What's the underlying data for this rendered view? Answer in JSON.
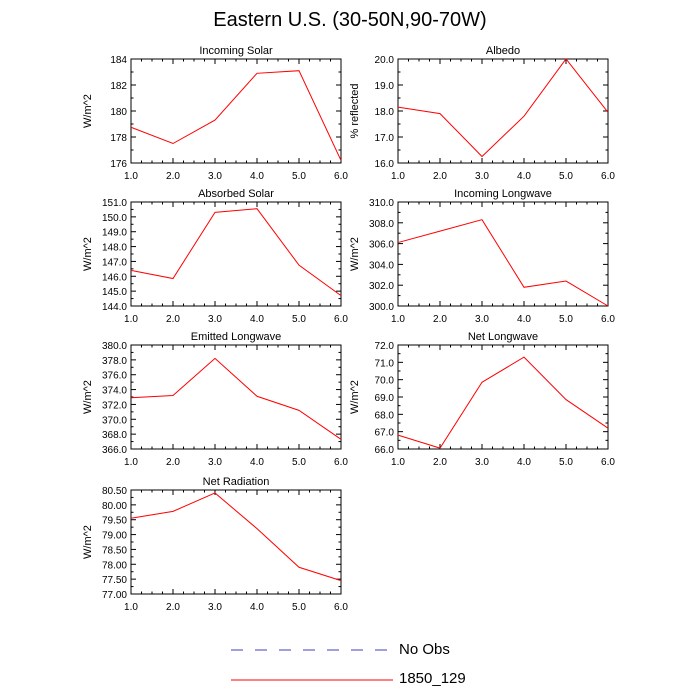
{
  "title": "Eastern U.S. (30-50N,90-70W)",
  "colors": {
    "frame": "#000000",
    "series": "#ff0000",
    "no_obs": "#3f3fbf"
  },
  "legend": {
    "entries": [
      {
        "label": "No Obs",
        "style": "dashed",
        "color": "#3f3fbf"
      },
      {
        "label": "1850_129",
        "style": "solid",
        "color": "#ff0000"
      }
    ]
  },
  "chart_data": [
    {
      "type": "line",
      "title": "Incoming Solar",
      "xlabel": "",
      "ylabel": "W/m^2",
      "x": [
        1,
        2,
        3,
        4,
        5,
        6
      ],
      "xlim": [
        1,
        6
      ],
      "xticks": [
        "1.0",
        "2.0",
        "3.0",
        "4.0",
        "5.0",
        "6.0"
      ],
      "ylim": [
        176,
        184
      ],
      "yticks": [
        "176",
        "178",
        "180",
        "182",
        "184"
      ],
      "series": [
        {
          "values": [
            178.75,
            177.5,
            179.3,
            182.9,
            183.1,
            176.2
          ]
        }
      ]
    },
    {
      "type": "line",
      "title": "Albedo",
      "xlabel": "",
      "ylabel": "% reflected",
      "x": [
        1,
        2,
        3,
        4,
        5,
        6
      ],
      "xlim": [
        1,
        6
      ],
      "xticks": [
        "1.0",
        "2.0",
        "3.0",
        "4.0",
        "5.0",
        "6.0"
      ],
      "ylim": [
        16,
        20
      ],
      "yticks": [
        "16.0",
        "17.0",
        "18.0",
        "19.0",
        "20.0"
      ],
      "series": [
        {
          "values": [
            18.15,
            17.9,
            16.25,
            17.8,
            20.0,
            17.95
          ]
        }
      ]
    },
    {
      "type": "line",
      "title": "Absorbed Solar",
      "xlabel": "",
      "ylabel": "W/m^2",
      "x": [
        1,
        2,
        3,
        4,
        5,
        6
      ],
      "xlim": [
        1,
        6
      ],
      "xticks": [
        "1.0",
        "2.0",
        "3.0",
        "4.0",
        "5.0",
        "6.0"
      ],
      "ylim": [
        144,
        151
      ],
      "yticks": [
        "144.0",
        "145.0",
        "146.0",
        "147.0",
        "148.0",
        "149.0",
        "150.0",
        "151.0"
      ],
      "series": [
        {
          "values": [
            146.4,
            145.85,
            150.3,
            150.55,
            146.75,
            144.7
          ]
        }
      ]
    },
    {
      "type": "line",
      "title": "Incoming Longwave",
      "xlabel": "",
      "ylabel": "W/m^2",
      "x": [
        1,
        2,
        3,
        4,
        5,
        6
      ],
      "xlim": [
        1,
        6
      ],
      "xticks": [
        "1.0",
        "2.0",
        "3.0",
        "4.0",
        "5.0",
        "6.0"
      ],
      "ylim": [
        300,
        310
      ],
      "yticks": [
        "300.0",
        "302.0",
        "304.0",
        "306.0",
        "308.0",
        "310.0"
      ],
      "series": [
        {
          "values": [
            306.1,
            307.2,
            308.3,
            301.8,
            302.4,
            300.0
          ]
        }
      ]
    },
    {
      "type": "line",
      "title": "Emitted Longwave",
      "xlabel": "",
      "ylabel": "W/m^2",
      "x": [
        1,
        2,
        3,
        4,
        5,
        6
      ],
      "xlim": [
        1,
        6
      ],
      "xticks": [
        "1.0",
        "2.0",
        "3.0",
        "4.0",
        "5.0",
        "6.0"
      ],
      "ylim": [
        366,
        380
      ],
      "yticks": [
        "366.0",
        "368.0",
        "370.0",
        "372.0",
        "374.0",
        "376.0",
        "378.0",
        "380.0"
      ],
      "series": [
        {
          "values": [
            372.9,
            373.2,
            378.2,
            373.1,
            371.2,
            367.3
          ]
        }
      ]
    },
    {
      "type": "line",
      "title": "Net Longwave",
      "xlabel": "",
      "ylabel": "W/m^2",
      "x": [
        1,
        2,
        3,
        4,
        5,
        6
      ],
      "xlim": [
        1,
        6
      ],
      "xticks": [
        "1.0",
        "2.0",
        "3.0",
        "4.0",
        "5.0",
        "6.0"
      ],
      "ylim": [
        66,
        72
      ],
      "yticks": [
        "66.0",
        "67.0",
        "68.0",
        "69.0",
        "70.0",
        "71.0",
        "72.0"
      ],
      "series": [
        {
          "values": [
            66.8,
            66.05,
            69.85,
            71.3,
            68.85,
            67.2
          ]
        }
      ]
    },
    {
      "type": "line",
      "title": "Net Radiation",
      "xlabel": "",
      "ylabel": "W/m^2",
      "x": [
        1,
        2,
        3,
        4,
        5,
        6
      ],
      "xlim": [
        1,
        6
      ],
      "xticks": [
        "1.0",
        "2.0",
        "3.0",
        "4.0",
        "5.0",
        "6.0"
      ],
      "ylim": [
        77,
        80.5
      ],
      "yticks": [
        "77.00",
        "77.50",
        "78.00",
        "78.50",
        "79.00",
        "79.50",
        "80.00",
        "80.50"
      ],
      "series": [
        {
          "values": [
            79.55,
            79.78,
            80.4,
            79.2,
            77.9,
            77.45
          ]
        }
      ]
    }
  ]
}
